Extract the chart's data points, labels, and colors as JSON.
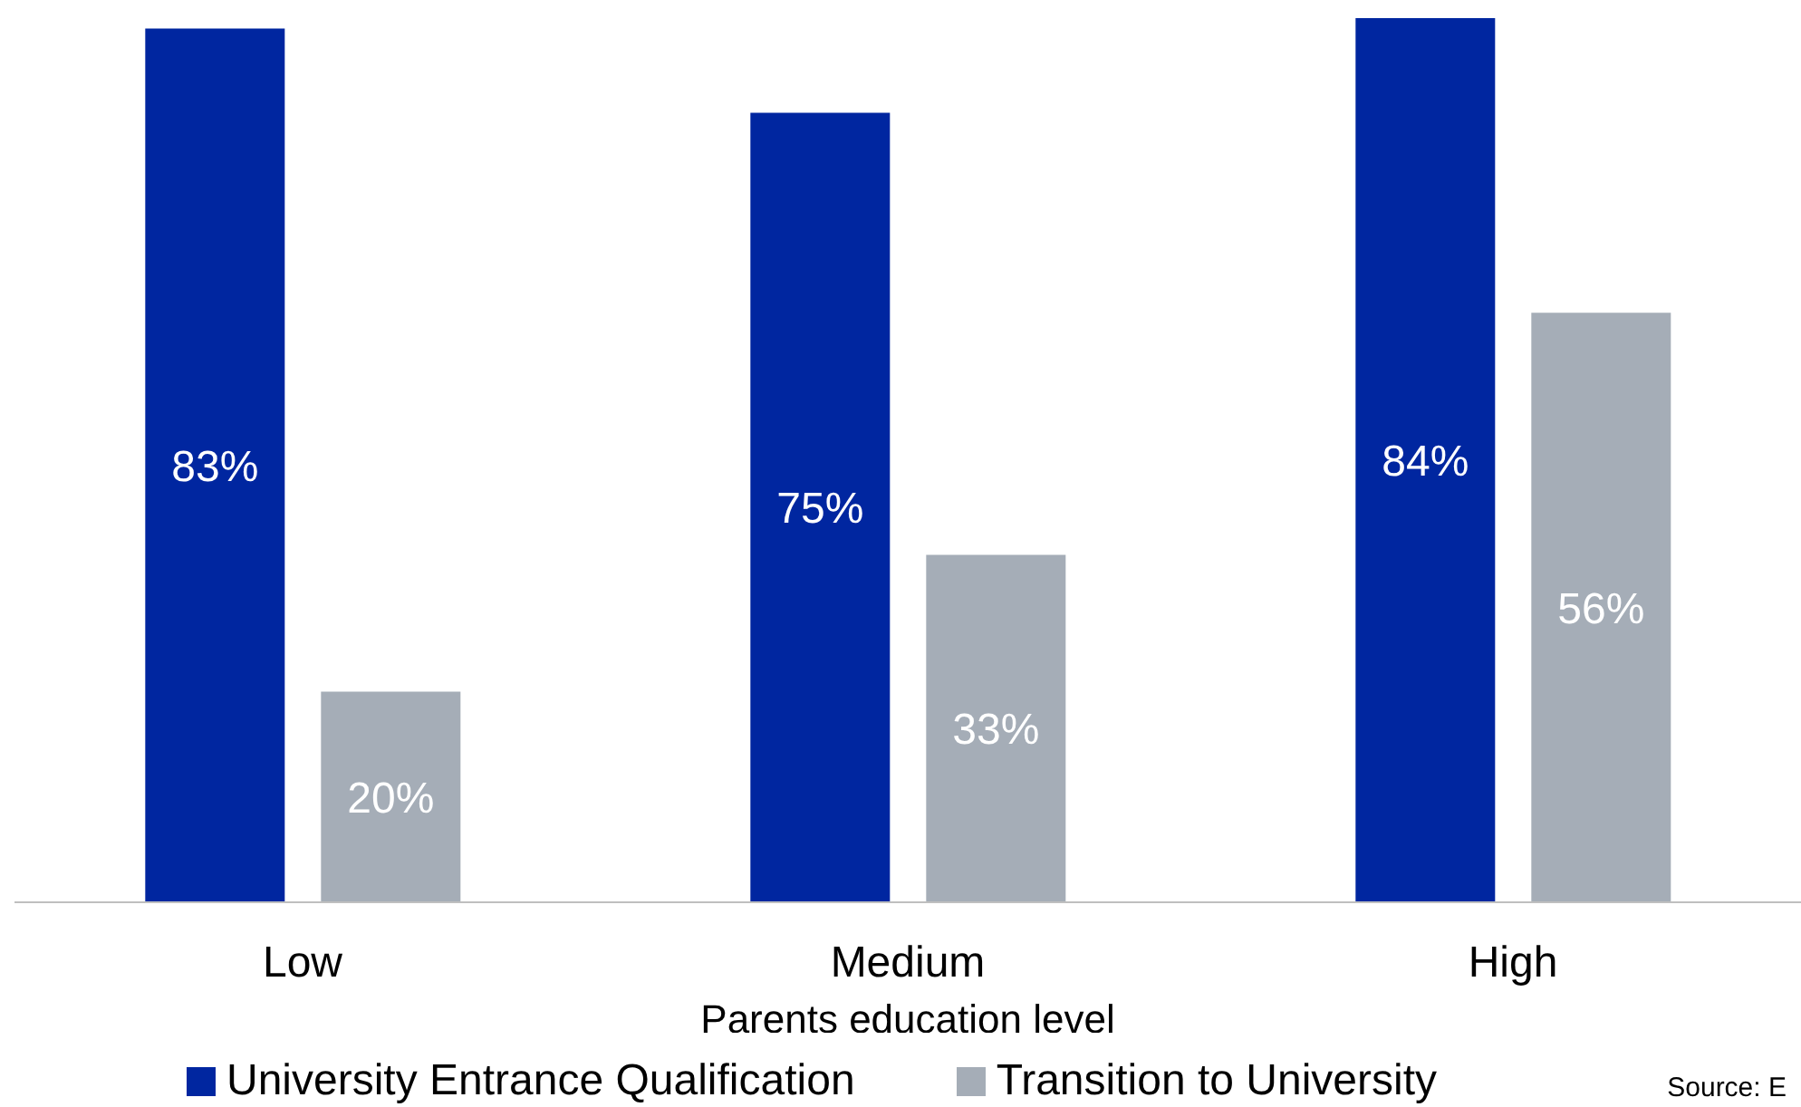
{
  "chart_data": {
    "type": "bar",
    "xlabel": "Parents education level",
    "categories": [
      "Low",
      "Medium",
      "High"
    ],
    "series": [
      {
        "name": "University Entrance Qualification",
        "color": "#0026a0",
        "values": [
          83,
          75,
          84
        ],
        "value_labels": [
          "83%",
          "75%",
          "84%"
        ]
      },
      {
        "name": "Transition to University",
        "color": "#a5adb7",
        "values": [
          20,
          33,
          56
        ],
        "value_labels": [
          "20%",
          "33%",
          "56%"
        ]
      }
    ],
    "legend": "bottom",
    "annotations": [
      "Source: E"
    ]
  }
}
